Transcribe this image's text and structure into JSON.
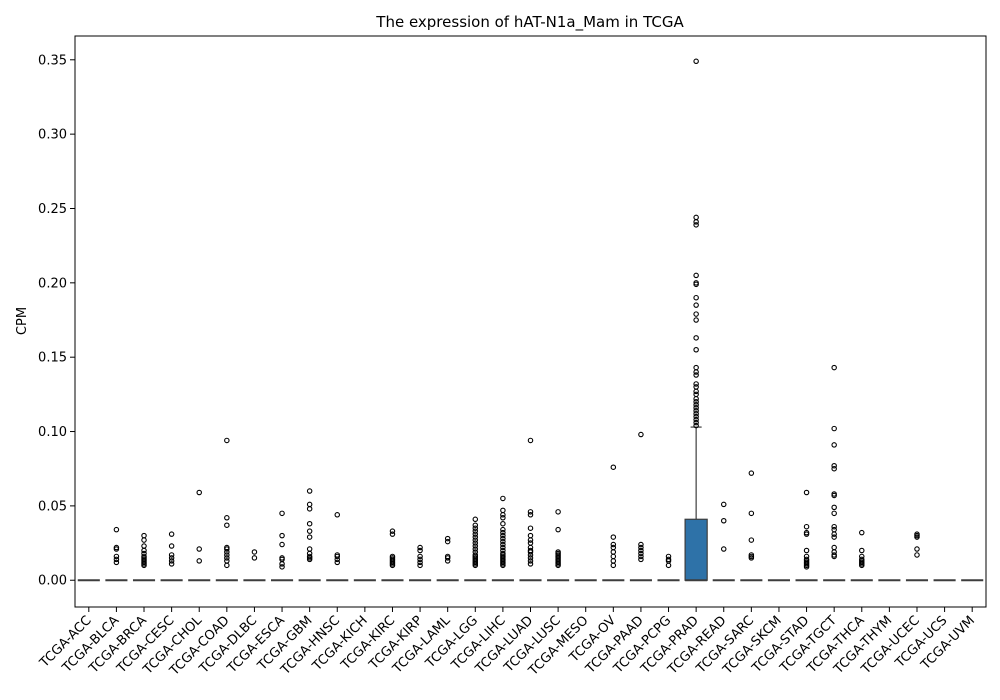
{
  "chart_data": {
    "type": "box",
    "title": "The expression of hAT-N1a_Mam in TCGA",
    "xlabel": "",
    "ylabel": "CPM",
    "ylim": [
      -0.018,
      0.366
    ],
    "yticks": [
      "0.00",
      "0.05",
      "0.10",
      "0.15",
      "0.20",
      "0.25",
      "0.30",
      "0.35"
    ],
    "ytick_values": [
      0,
      0.05,
      0.1,
      0.15,
      0.2,
      0.25,
      0.3,
      0.35
    ],
    "grid": false,
    "categories": [
      "TCGA-ACC",
      "TCGA-BLCA",
      "TCGA-BRCA",
      "TCGA-CESC",
      "TCGA-CHOL",
      "TCGA-COAD",
      "TCGA-DLBC",
      "TCGA-ESCA",
      "TCGA-GBM",
      "TCGA-HNSC",
      "TCGA-KICH",
      "TCGA-KIRC",
      "TCGA-KIRP",
      "TCGA-LAML",
      "TCGA-LGG",
      "TCGA-LIHC",
      "TCGA-LUAD",
      "TCGA-LUSC",
      "TCGA-MESO",
      "TCGA-OV",
      "TCGA-PAAD",
      "TCGA-PCPG",
      "TCGA-PRAD",
      "TCGA-READ",
      "TCGA-SARC",
      "TCGA-SKCM",
      "TCGA-STAD",
      "TCGA-TGCT",
      "TCGA-THCA",
      "TCGA-THYM",
      "TCGA-UCEC",
      "TCGA-UCS",
      "TCGA-UVM"
    ],
    "boxes": [
      {
        "q1": 0,
        "median": 0,
        "q3": 0,
        "whisker_low": 0,
        "whisker_high": 0
      },
      {
        "q1": 0,
        "median": 0,
        "q3": 0,
        "whisker_low": 0,
        "whisker_high": 0
      },
      {
        "q1": 0,
        "median": 0,
        "q3": 0,
        "whisker_low": 0,
        "whisker_high": 0
      },
      {
        "q1": 0,
        "median": 0,
        "q3": 0,
        "whisker_low": 0,
        "whisker_high": 0
      },
      {
        "q1": 0,
        "median": 0,
        "q3": 0,
        "whisker_low": 0,
        "whisker_high": 0
      },
      {
        "q1": 0,
        "median": 0,
        "q3": 0,
        "whisker_low": 0,
        "whisker_high": 0
      },
      {
        "q1": 0,
        "median": 0,
        "q3": 0,
        "whisker_low": 0,
        "whisker_high": 0
      },
      {
        "q1": 0,
        "median": 0,
        "q3": 0,
        "whisker_low": 0,
        "whisker_high": 0
      },
      {
        "q1": 0,
        "median": 0,
        "q3": 0,
        "whisker_low": 0,
        "whisker_high": 0
      },
      {
        "q1": 0,
        "median": 0,
        "q3": 0,
        "whisker_low": 0,
        "whisker_high": 0
      },
      {
        "q1": 0,
        "median": 0,
        "q3": 0,
        "whisker_low": 0,
        "whisker_high": 0
      },
      {
        "q1": 0,
        "median": 0,
        "q3": 0,
        "whisker_low": 0,
        "whisker_high": 0
      },
      {
        "q1": 0,
        "median": 0,
        "q3": 0,
        "whisker_low": 0,
        "whisker_high": 0
      },
      {
        "q1": 0,
        "median": 0,
        "q3": 0,
        "whisker_low": 0,
        "whisker_high": 0
      },
      {
        "q1": 0,
        "median": 0,
        "q3": 0,
        "whisker_low": 0,
        "whisker_high": 0
      },
      {
        "q1": 0,
        "median": 0,
        "q3": 0,
        "whisker_low": 0,
        "whisker_high": 0
      },
      {
        "q1": 0,
        "median": 0,
        "q3": 0,
        "whisker_low": 0,
        "whisker_high": 0
      },
      {
        "q1": 0,
        "median": 0,
        "q3": 0,
        "whisker_low": 0,
        "whisker_high": 0
      },
      {
        "q1": 0,
        "median": 0,
        "q3": 0,
        "whisker_low": 0,
        "whisker_high": 0
      },
      {
        "q1": 0,
        "median": 0,
        "q3": 0,
        "whisker_low": 0,
        "whisker_high": 0
      },
      {
        "q1": 0,
        "median": 0,
        "q3": 0,
        "whisker_low": 0,
        "whisker_high": 0
      },
      {
        "q1": 0,
        "median": 0,
        "q3": 0,
        "whisker_low": 0,
        "whisker_high": 0
      },
      {
        "q1": 0,
        "median": 0,
        "q3": 0.041,
        "whisker_low": 0,
        "whisker_high": 0.103
      },
      {
        "q1": 0,
        "median": 0,
        "q3": 0,
        "whisker_low": 0,
        "whisker_high": 0
      },
      {
        "q1": 0,
        "median": 0,
        "q3": 0,
        "whisker_low": 0,
        "whisker_high": 0
      },
      {
        "q1": 0,
        "median": 0,
        "q3": 0,
        "whisker_low": 0,
        "whisker_high": 0
      },
      {
        "q1": 0,
        "median": 0,
        "q3": 0,
        "whisker_low": 0,
        "whisker_high": 0
      },
      {
        "q1": 0,
        "median": 0,
        "q3": 0,
        "whisker_low": 0,
        "whisker_high": 0
      },
      {
        "q1": 0,
        "median": 0,
        "q3": 0,
        "whisker_low": 0,
        "whisker_high": 0
      },
      {
        "q1": 0,
        "median": 0,
        "q3": 0,
        "whisker_low": 0,
        "whisker_high": 0
      },
      {
        "q1": 0,
        "median": 0,
        "q3": 0,
        "whisker_low": 0,
        "whisker_high": 0
      },
      {
        "q1": 0,
        "median": 0,
        "q3": 0,
        "whisker_low": 0,
        "whisker_high": 0
      },
      {
        "q1": 0,
        "median": 0,
        "q3": 0,
        "whisker_low": 0,
        "whisker_high": 0
      }
    ],
    "outliers": [
      [],
      [
        0.034,
        0.022,
        0.021,
        0.016,
        0.014,
        0.012
      ],
      [
        0.03,
        0.027,
        0.023,
        0.02,
        0.018,
        0.016,
        0.015,
        0.014,
        0.013,
        0.012,
        0.011,
        0.01
      ],
      [
        0.031,
        0.023,
        0.017,
        0.015,
        0.013,
        0.011
      ],
      [
        0.059,
        0.021,
        0.013
      ],
      [
        0.094,
        0.042,
        0.037,
        0.022,
        0.021,
        0.019,
        0.017,
        0.015,
        0.013,
        0.01
      ],
      [
        0.019,
        0.015
      ],
      [
        0.045,
        0.03,
        0.024,
        0.015,
        0.014,
        0.011,
        0.009
      ],
      [
        0.06,
        0.051,
        0.048,
        0.038,
        0.033,
        0.029,
        0.021,
        0.018,
        0.016,
        0.015,
        0.014
      ],
      [
        0.044,
        0.017,
        0.016,
        0.014,
        0.012
      ],
      [],
      [
        0.033,
        0.031,
        0.016,
        0.015,
        0.014,
        0.013,
        0.012,
        0.011,
        0.01
      ],
      [
        0.022,
        0.02,
        0.016,
        0.014,
        0.012,
        0.01
      ],
      [
        0.028,
        0.026,
        0.016,
        0.015,
        0.013
      ],
      [
        0.041,
        0.037,
        0.035,
        0.033,
        0.031,
        0.029,
        0.027,
        0.025,
        0.023,
        0.021,
        0.019,
        0.017,
        0.016,
        0.015,
        0.014,
        0.013,
        0.012,
        0.011,
        0.01
      ],
      [
        0.055,
        0.047,
        0.044,
        0.042,
        0.038,
        0.034,
        0.032,
        0.03,
        0.028,
        0.026,
        0.024,
        0.022,
        0.02,
        0.018,
        0.017,
        0.016,
        0.015,
        0.014,
        0.013,
        0.012,
        0.011,
        0.01
      ],
      [
        0.094,
        0.046,
        0.044,
        0.035,
        0.03,
        0.027,
        0.025,
        0.022,
        0.02,
        0.019,
        0.017,
        0.015,
        0.013,
        0.011
      ],
      [
        0.046,
        0.034,
        0.019,
        0.018,
        0.017,
        0.016,
        0.015,
        0.014,
        0.013,
        0.012,
        0.011,
        0.01
      ],
      [],
      [
        0.076,
        0.029,
        0.024,
        0.022,
        0.019,
        0.016,
        0.013,
        0.01
      ],
      [
        0.098,
        0.024,
        0.022,
        0.02,
        0.018,
        0.016,
        0.014
      ],
      [
        0.016,
        0.014,
        0.013,
        0.01
      ],
      [
        0.349,
        0.244,
        0.241,
        0.239,
        0.205,
        0.2,
        0.199,
        0.19,
        0.185,
        0.179,
        0.175,
        0.163,
        0.155,
        0.143,
        0.14,
        0.138,
        0.132,
        0.13,
        0.127,
        0.125,
        0.122,
        0.12,
        0.118,
        0.116,
        0.114,
        0.112,
        0.11,
        0.108,
        0.106,
        0.104
      ],
      [
        0.051,
        0.04,
        0.021
      ],
      [
        0.072,
        0.045,
        0.027,
        0.017,
        0.016,
        0.015
      ],
      [],
      [
        0.059,
        0.036,
        0.032,
        0.031,
        0.02,
        0.016,
        0.014,
        0.013,
        0.012,
        0.011,
        0.01,
        0.009
      ],
      [
        0.143,
        0.102,
        0.091,
        0.077,
        0.075,
        0.058,
        0.057,
        0.049,
        0.045,
        0.036,
        0.034,
        0.031,
        0.029,
        0.022,
        0.019,
        0.017,
        0.016
      ],
      [
        0.032,
        0.02,
        0.016,
        0.014,
        0.013,
        0.012,
        0.011,
        0.01
      ],
      [],
      [
        0.031,
        0.03,
        0.029,
        0.021,
        0.017
      ],
      [],
      []
    ],
    "box_color": "#2e72a8",
    "line_color": "#3d3d3d"
  }
}
